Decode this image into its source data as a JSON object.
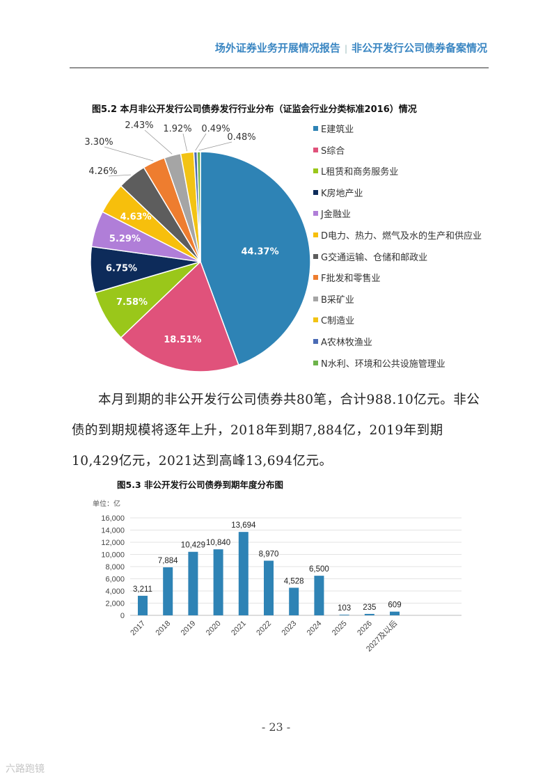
{
  "header": {
    "left": "场外证券业务开展情况报告",
    "separator": "|",
    "right": "非公开发行公司债券备案情况"
  },
  "figure_52": {
    "title": "图5.2 本月非公开发行公司债券发行行业分布（证监会行业分类标准2016）情况"
  },
  "figure_53": {
    "title": "图5.3 非公开发行公司债券到期年度分布图"
  },
  "paragraph": "本月到期的非公开发行公司债券共80笔，合计988.10亿元。非公债的到期规模将逐年上升，2018年到期7,884亿，2019年到期10,429亿元，2021达到高峰13,694亿元。",
  "page_number": "- 23 -",
  "watermark": "六路跑镜",
  "chart_data": [
    {
      "type": "pie",
      "title": "图5.2 本月非公开发行公司债券发行行业分布（证监会行业分类标准2016）情况",
      "labels": [
        "E建筑业",
        "S综合",
        "L租赁和商务服务业",
        "K房地产业",
        "J金融业",
        "D电力、热力、燃气及水的生产和供应业",
        "G交通运输、仓储和邮政业",
        "F批发和零售业",
        "B采矿业",
        "C制造业",
        "A农林牧渔业",
        "N水利、环境和公共设施管理业"
      ],
      "values": [
        44.37,
        18.51,
        7.58,
        6.75,
        5.29,
        4.63,
        4.26,
        3.3,
        2.43,
        1.92,
        0.49,
        0.48
      ],
      "value_labels": [
        "44.37%",
        "18.51%",
        "7.58%",
        "6.75%",
        "5.29%",
        "4.63%",
        "4.26%",
        "3.30%",
        "2.43%",
        "1.92%",
        "0.49%",
        "0.48%"
      ],
      "colors": [
        "#2e83b5",
        "#e0527b",
        "#9ac71a",
        "#0d2b5a",
        "#b07ed8",
        "#f7bf0c",
        "#5d5d5d",
        "#ee7d2f",
        "#a5a5a5",
        "#f2c314",
        "#4a6bb5",
        "#6db34a"
      ],
      "legend_position": "right"
    },
    {
      "type": "bar",
      "title": "图5.3 非公开发行公司债券到期年度分布图",
      "unit_label": "单位：亿",
      "categories": [
        "2017",
        "2018",
        "2019",
        "2020",
        "2021",
        "2022",
        "2023",
        "2024",
        "2025",
        "2026",
        "2027及以后"
      ],
      "values": [
        3211,
        7884,
        10429,
        10840,
        13694,
        8970,
        4528,
        6500,
        103,
        235,
        609
      ],
      "value_labels": [
        "3,211",
        "7,884",
        "10,429",
        "10,840",
        "13,694",
        "8,970",
        "4,528",
        "6,500",
        "103",
        "235",
        "609"
      ],
      "ylim": [
        0,
        16000
      ],
      "yticks": [
        "0",
        "2,000",
        "4,000",
        "6,000",
        "8,000",
        "10,000",
        "12,000",
        "14,000",
        "16,000"
      ],
      "grid": true,
      "color": "#2e83b5"
    }
  ]
}
